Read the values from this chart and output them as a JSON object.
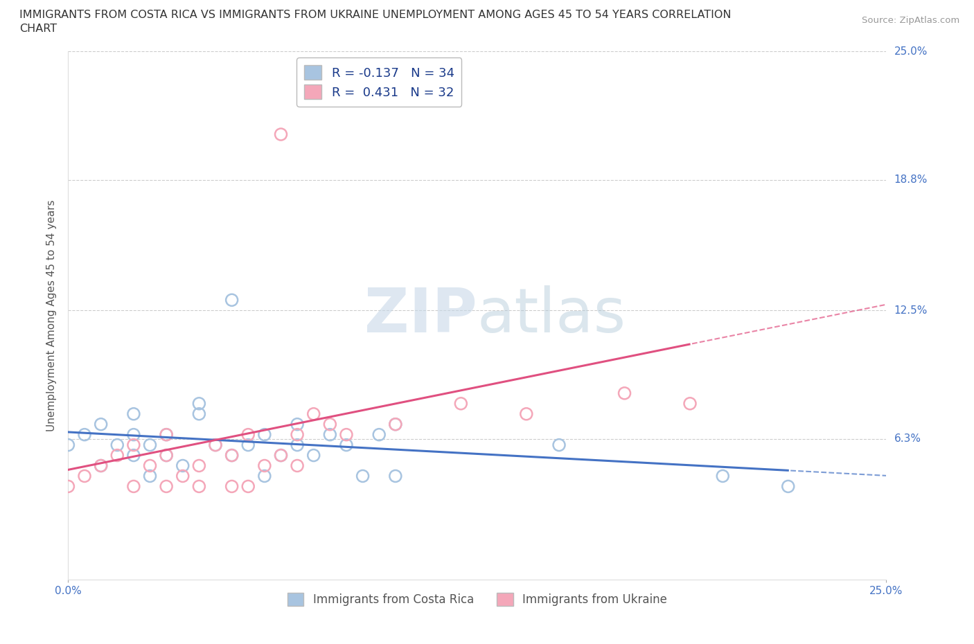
{
  "title_line1": "IMMIGRANTS FROM COSTA RICA VS IMMIGRANTS FROM UKRAINE UNEMPLOYMENT AMONG AGES 45 TO 54 YEARS CORRELATION",
  "title_line2": "CHART",
  "source": "Source: ZipAtlas.com",
  "ylabel": "Unemployment Among Ages 45 to 54 years",
  "xlim": [
    0.0,
    0.25
  ],
  "ylim": [
    -0.005,
    0.25
  ],
  "ytick_labels": [
    "6.3%",
    "12.5%",
    "18.8%",
    "25.0%"
  ],
  "ytick_values": [
    0.063,
    0.125,
    0.188,
    0.25
  ],
  "ytick_right_labels": [
    "6.3%",
    "12.5%",
    "18.8%",
    "25.0%"
  ],
  "xtick_labels": [
    "0.0%",
    "25.0%"
  ],
  "xtick_values": [
    0.0,
    0.25
  ],
  "grid_color": "#cccccc",
  "background_color": "#ffffff",
  "watermark_color": "#dce8f0",
  "series": [
    {
      "name": "Immigrants from Costa Rica",
      "R": -0.137,
      "N": 34,
      "color": "#a8c4e0",
      "line_color": "#4472c4",
      "line_style": "-",
      "x": [
        0.0,
        0.005,
        0.01,
        0.01,
        0.015,
        0.02,
        0.02,
        0.02,
        0.025,
        0.025,
        0.03,
        0.03,
        0.035,
        0.04,
        0.04,
        0.045,
        0.05,
        0.05,
        0.055,
        0.06,
        0.06,
        0.065,
        0.07,
        0.07,
        0.075,
        0.08,
        0.085,
        0.09,
        0.095,
        0.1,
        0.1,
        0.15,
        0.2,
        0.22
      ],
      "y": [
        0.06,
        0.065,
        0.07,
        0.05,
        0.06,
        0.065,
        0.055,
        0.075,
        0.06,
        0.045,
        0.055,
        0.065,
        0.05,
        0.075,
        0.08,
        0.06,
        0.055,
        0.13,
        0.06,
        0.065,
        0.045,
        0.055,
        0.06,
        0.07,
        0.055,
        0.065,
        0.06,
        0.045,
        0.065,
        0.07,
        0.045,
        0.06,
        0.045,
        0.04
      ]
    },
    {
      "name": "Immigrants from Ukraine",
      "R": 0.431,
      "N": 32,
      "color": "#f4a7b9",
      "line_color": "#e05080",
      "line_style": "-",
      "x": [
        0.0,
        0.005,
        0.01,
        0.015,
        0.02,
        0.02,
        0.025,
        0.03,
        0.03,
        0.03,
        0.035,
        0.04,
        0.04,
        0.045,
        0.05,
        0.05,
        0.055,
        0.055,
        0.06,
        0.065,
        0.065,
        0.07,
        0.07,
        0.075,
        0.08,
        0.085,
        0.09,
        0.1,
        0.12,
        0.14,
        0.17,
        0.19
      ],
      "y": [
        0.04,
        0.045,
        0.05,
        0.055,
        0.04,
        0.06,
        0.05,
        0.04,
        0.055,
        0.065,
        0.045,
        0.05,
        0.04,
        0.06,
        0.055,
        0.04,
        0.065,
        0.04,
        0.05,
        0.21,
        0.055,
        0.065,
        0.05,
        0.075,
        0.07,
        0.065,
        0.23,
        0.07,
        0.08,
        0.075,
        0.085,
        0.08
      ]
    }
  ]
}
